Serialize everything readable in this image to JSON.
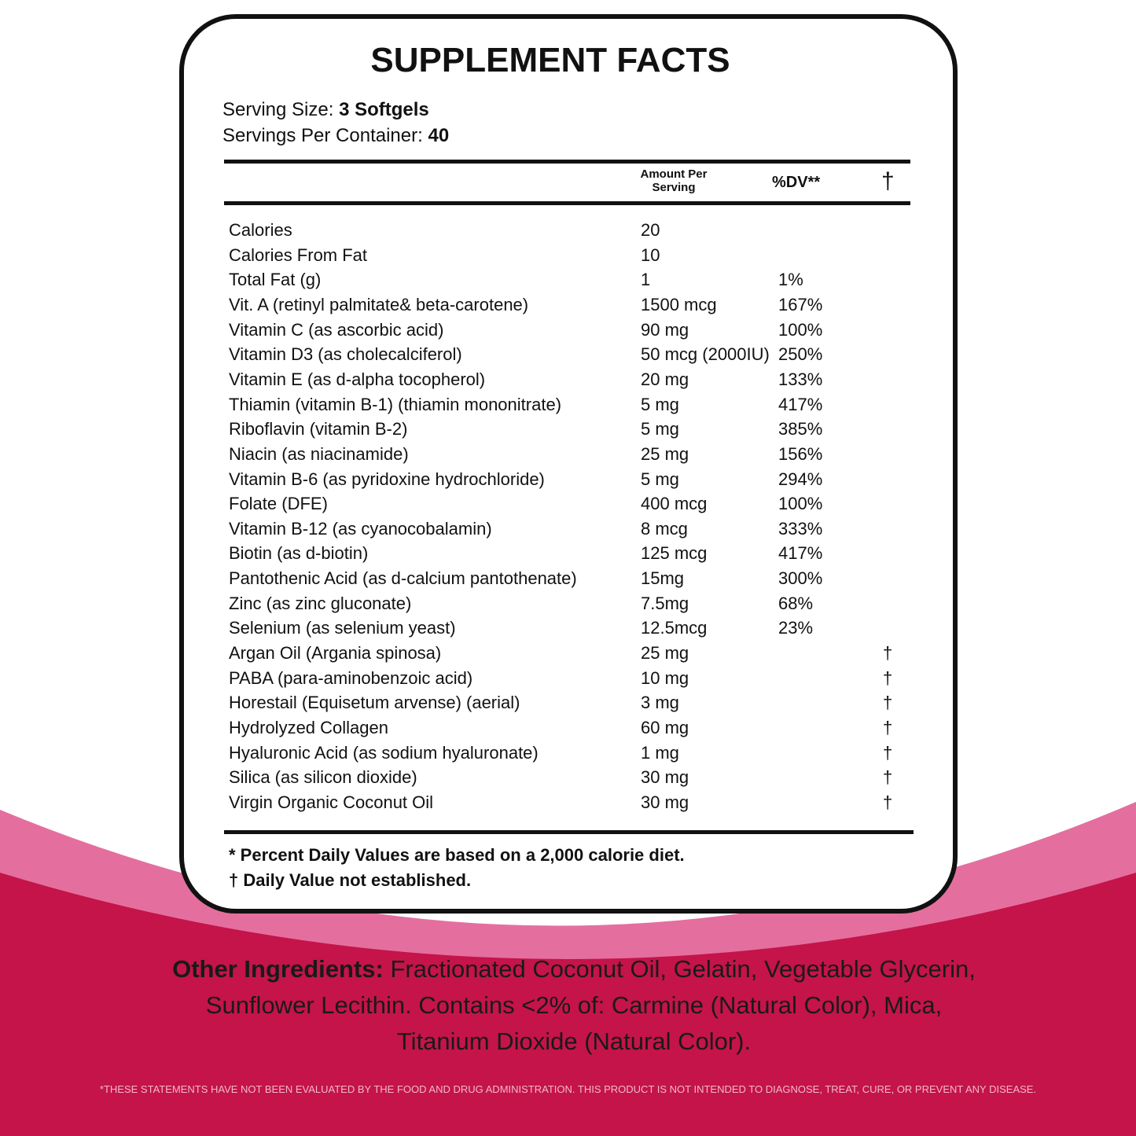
{
  "title": "SUPPLEMENT FACTS",
  "serving_size": {
    "label": "Serving Size:",
    "value": "3 Softgels"
  },
  "servings_per_container": {
    "label": "Servings Per Container:",
    "value": "40"
  },
  "columns": {
    "amount": "Amount Per Serving",
    "dv": "%DV**",
    "mark": "†"
  },
  "rows": [
    {
      "name": "Calories",
      "amount": "20"
    },
    {
      "name": "Calories From Fat",
      "amount": "10"
    },
    {
      "name": "Total Fat (g)",
      "amount": "1",
      "dv": "1%"
    },
    {
      "name": "Vit. A (retinyl palmitate& beta-carotene)",
      "amount": "1500 mcg",
      "dv": "167%"
    },
    {
      "name": "Vitamin C (as ascorbic acid)",
      "amount": "90 mg",
      "dv": "100%"
    },
    {
      "name": "Vitamin D3 (as cholecalciferol)",
      "amount": "50 mcg (2000IU)",
      "dv": "250%"
    },
    {
      "name": "Vitamin E (as d-alpha tocopherol)",
      "amount": "20 mg",
      "dv": "133%"
    },
    {
      "name": "Thiamin (vitamin B-1) (thiamin mononitrate)",
      "amount": "5 mg",
      "dv": "417%"
    },
    {
      "name": "Riboflavin (vitamin B-2)",
      "amount": "5 mg",
      "dv": "385%"
    },
    {
      "name": "Niacin (as niacinamide)",
      "amount": "25 mg",
      "dv": "156%"
    },
    {
      "name": "Vitamin B-6 (as pyridoxine hydrochloride)",
      "amount": "5 mg",
      "dv": "294%"
    },
    {
      "name": "Folate (DFE)",
      "amount": "400 mcg",
      "dv": "100%"
    },
    {
      "name": "Vitamin B-12 (as cyanocobalamin)",
      "amount": "8 mcg",
      "dv": "333%"
    },
    {
      "name": "Biotin (as d-biotin)",
      "amount": "125 mcg",
      "dv": "417%"
    },
    {
      "name": "Pantothenic Acid (as d-calcium pantothenate)",
      "amount": "15mg",
      "dv": "300%"
    },
    {
      "name": "Zinc (as zinc gluconate)",
      "amount": "7.5mg",
      "dv": "68%"
    },
    {
      "name": "Selenium (as selenium yeast)",
      "amount": "12.5mcg",
      "dv": "23%"
    },
    {
      "name": "Argan Oil (Argania spinosa)",
      "amount": "25 mg",
      "mark": "†"
    },
    {
      "name": "PABA (para-aminobenzoic acid)",
      "amount": "10 mg",
      "mark": "†"
    },
    {
      "name": "Horestail (Equisetum arvense) (aerial)",
      "amount": "3 mg",
      "mark": "†"
    },
    {
      "name": "Hydrolyzed Collagen",
      "amount": "60 mg",
      "mark": "†"
    },
    {
      "name": "Hyaluronic Acid (as sodium hyaluronate)",
      "amount": "1 mg",
      "mark": "†"
    },
    {
      "name": "Silica (as silicon dioxide)",
      "amount": "30 mg",
      "mark": "†"
    },
    {
      "name": "Virgin Organic Coconut Oil",
      "amount": "30 mg",
      "mark": "†"
    }
  ],
  "footnotes": [
    "* Percent Daily Values are based on a 2,000 calorie diet.",
    "† Daily Value not established."
  ],
  "other_ingredients": {
    "label": "Other Ingredients:",
    "text": "Fractionated Coconut Oil, Gelatin, Vegetable Glycerin, Sunflower Lecithin. Contains <2% of: Carmine (Natural Color), Mica, Titanium Dioxide (Natural Color)."
  },
  "disclaimer": "*THESE STATEMENTS HAVE NOT BEEN EVALUATED BY THE FOOD AND DRUG ADMINISTRATION. THIS PRODUCT IS NOT INTENDED TO DIAGNOSE, TREAT, CURE, OR PREVENT ANY DISEASE."
}
